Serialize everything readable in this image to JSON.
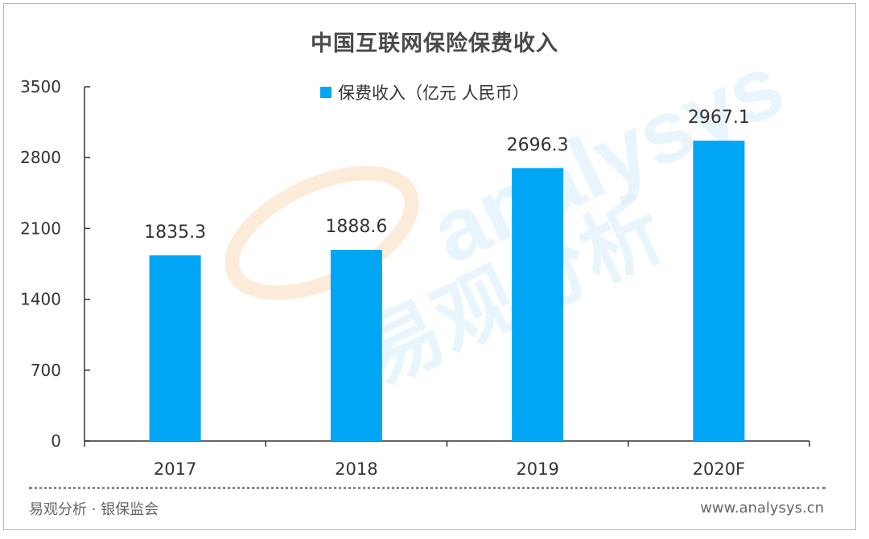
{
  "colors": {
    "bar": "#00A6F4",
    "axis": "#333333",
    "text": "#333333"
  },
  "watermark": {
    "latin": "analysys",
    "chinese": "易观分析"
  },
  "footer": {
    "source": "易观分析 · 银保监会",
    "url": "www.analysys.cn"
  },
  "chart_data": {
    "type": "bar",
    "title": "中国互联网保险保费收入",
    "categories": [
      "2017",
      "2018",
      "2019",
      "2020F"
    ],
    "series": [
      {
        "name": "保费收入（亿元 人民币）",
        "values": [
          1835.3,
          1888.6,
          2696.3,
          2967.1
        ]
      }
    ],
    "data_labels": [
      "1835.3",
      "1888.6",
      "2696.3",
      "2967.1"
    ],
    "ylim": [
      0,
      3500
    ],
    "yticks": [
      0,
      700,
      1400,
      2100,
      2800,
      3500
    ],
    "legend_position": "top-center",
    "grid": false
  }
}
